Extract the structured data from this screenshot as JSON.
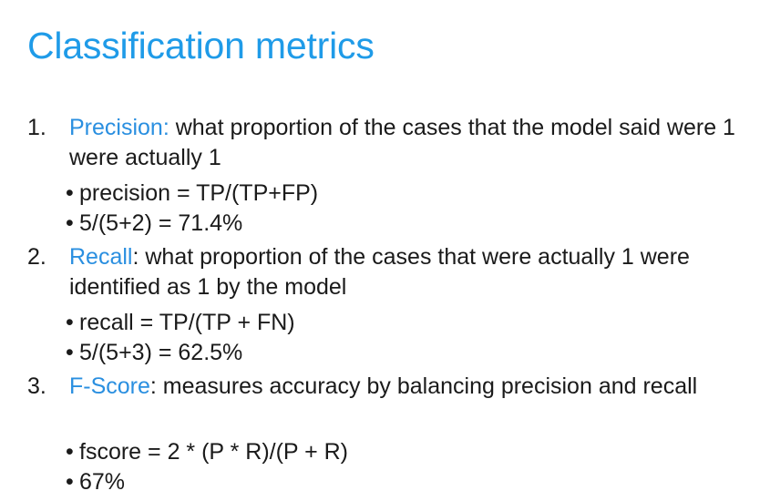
{
  "title": "Classification metrics",
  "items": [
    {
      "number": "1.",
      "term": "Precision:",
      "description": " what proportion of the cases that the model said were 1 were actually 1",
      "bullets": [
        "precision = TP/(TP+FP)",
        "5/(5+2) = 71.4%"
      ]
    },
    {
      "number": "2.",
      "term": "Recall",
      "description": ": what proportion of the cases that were actually 1 were identified as 1 by the model",
      "bullets": [
        "recall = TP/(TP + FN)",
        "5/(5+3) = 62.5%"
      ]
    },
    {
      "number": "3.",
      "term": "F-Score",
      "description": ": measures accuracy by balancing precision and recall",
      "bullets": [
        "fscore = 2 * (P * R)/(P + R)",
        "67%"
      ]
    }
  ],
  "bullet_glyph": "•",
  "colors": {
    "title": "#1f9be8",
    "term": "#2a8fe0",
    "text": "#1a1a1a"
  }
}
